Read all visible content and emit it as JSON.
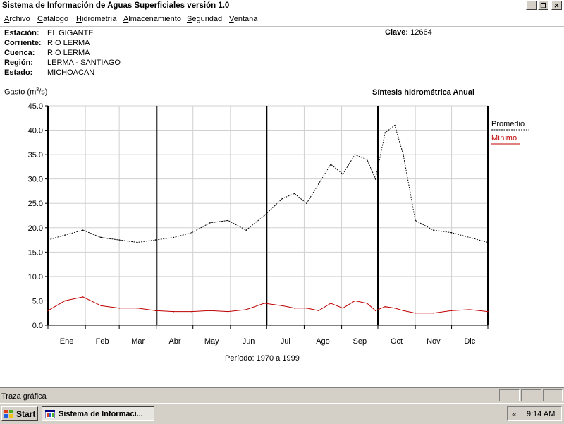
{
  "window": {
    "title": "Sistema de Información de Aguas Superficiales  versión 1.0",
    "btn_min": "_",
    "btn_max": "❐",
    "btn_close": "✕"
  },
  "menu": [
    "Archivo",
    "Catálogo",
    "Hidrometría",
    "Almacenamiento",
    "Seguridad",
    "Ventana"
  ],
  "station": {
    "labels": [
      "Estación:",
      "Corriente:",
      "Cuenca:",
      "Región:",
      "Estado:"
    ],
    "values": [
      "EL GIGANTE",
      "RIO LERMA",
      "RIO LERMA",
      "LERMA - SANTIAGO",
      "MICHOACAN"
    ],
    "clave_label": "Clave:",
    "clave_value": "12664"
  },
  "chart_data": {
    "type": "line",
    "title": "Síntesis hidrométrica   Anual",
    "ylabel_main": "Gasto (m",
    "ylabel_sup": "3",
    "ylabel_end": "/s)",
    "xlabel": "Período:  1970 a 1999",
    "ylim": [
      0,
      45
    ],
    "yticks": [
      "0.0",
      "5.0",
      "10.0",
      "15.0",
      "20.0",
      "25.0",
      "30.0",
      "35.0",
      "40.0",
      "45.0"
    ],
    "categories": [
      "Ene",
      "Feb",
      "Mar",
      "Abr",
      "May",
      "Jun",
      "Jul",
      "Ago",
      "Sep",
      "Oct",
      "Nov",
      "Dic"
    ],
    "grid": true,
    "legend_position": "right",
    "series": [
      {
        "name": "Promedio",
        "style": "dashed",
        "color": "#000000",
        "x": [
          1,
          15,
          30,
          45,
          60,
          75,
          90,
          105,
          120,
          135,
          150,
          165,
          180,
          195,
          205,
          215,
          225,
          235,
          245,
          255,
          265,
          272,
          280,
          288,
          295,
          305,
          320,
          335,
          350,
          365
        ],
        "values": [
          17.5,
          18.5,
          19.5,
          18.0,
          17.5,
          17.0,
          17.5,
          18.0,
          19.0,
          21.0,
          21.5,
          19.5,
          22.5,
          26.0,
          27.0,
          25.0,
          29.0,
          33.0,
          31.0,
          35.0,
          34.0,
          30.0,
          39.5,
          41.0,
          35.0,
          21.5,
          19.5,
          19.0,
          18.0,
          17.0
        ]
      },
      {
        "name": "Mínimo",
        "style": "solid",
        "color": "#c00000",
        "x": [
          1,
          15,
          30,
          45,
          60,
          75,
          90,
          105,
          120,
          135,
          150,
          165,
          180,
          195,
          205,
          215,
          225,
          235,
          245,
          255,
          265,
          272,
          280,
          288,
          295,
          305,
          320,
          335,
          350,
          365
        ],
        "values": [
          3.0,
          5.0,
          5.8,
          4.0,
          3.5,
          3.5,
          3.0,
          2.8,
          2.8,
          3.0,
          2.8,
          3.2,
          4.5,
          4.0,
          3.5,
          3.5,
          3.0,
          4.5,
          3.5,
          5.0,
          4.5,
          3.0,
          3.8,
          3.5,
          3.0,
          2.5,
          2.5,
          3.0,
          3.2,
          2.8
        ]
      }
    ]
  },
  "status": {
    "text": "Traza gráfica"
  },
  "taskbar": {
    "start": "Start",
    "task": "Sistema de Informaci...",
    "chevron": "«",
    "clock": "9:14 AM"
  },
  "colors": {
    "minimo": "#c00000",
    "promedio": "#000000",
    "face": "#d4d0c8"
  }
}
